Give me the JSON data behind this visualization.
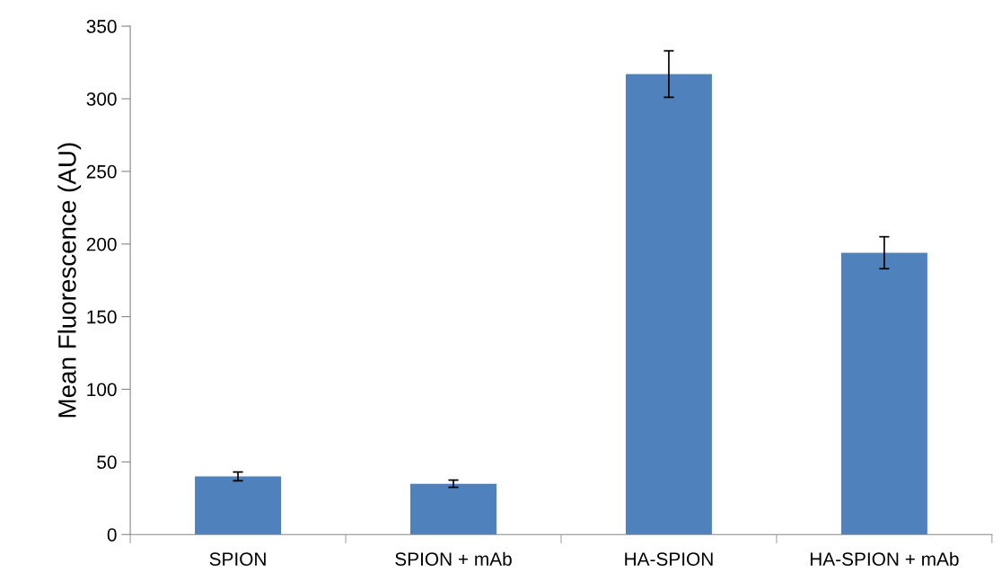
{
  "chart_data": {
    "type": "bar",
    "ylabel": "Mean Fluorescence (AU)",
    "categories": [
      "SPION",
      "SPION + mAb",
      "HA-SPION",
      "HA-SPION + mAb"
    ],
    "values": [
      40,
      35,
      317,
      194
    ],
    "errors": [
      3,
      2.5,
      16,
      11
    ],
    "color": "#4f81bd",
    "ylim": [
      0,
      350
    ],
    "yticks": [
      0,
      50,
      100,
      150,
      200,
      250,
      300,
      350
    ],
    "grid": false
  }
}
